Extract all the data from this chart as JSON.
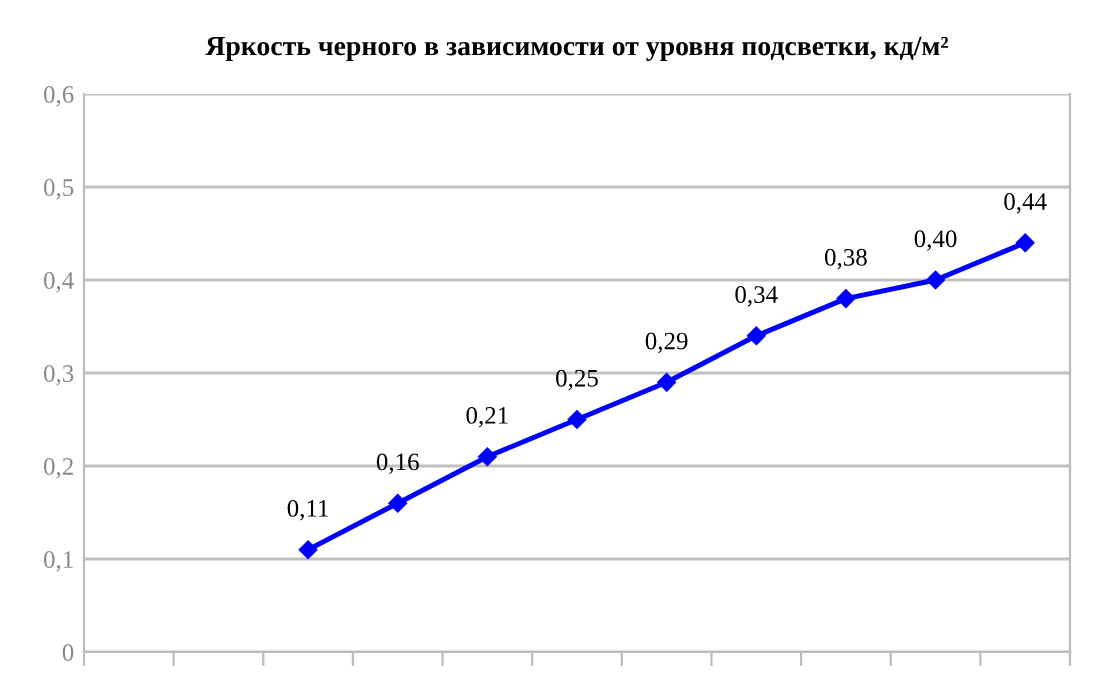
{
  "chart_data": {
    "type": "line",
    "title": "Яркость черного в зависимости от уровня подсветки, кд/м²",
    "categories": [
      null,
      null,
      null,
      null,
      null,
      null,
      null,
      null,
      null,
      null,
      null
    ],
    "series": [
      {
        "color": "#0000ff",
        "values": [
          null,
          null,
          0.11,
          0.16,
          0.21,
          0.25,
          0.29,
          0.34,
          0.38,
          0.4,
          0.44
        ],
        "value_labels": [
          null,
          null,
          "0,11",
          "0,16",
          "0,21",
          "0,25",
          "0,29",
          "0,34",
          "0,38",
          "0,40",
          "0,44"
        ]
      }
    ],
    "ylim": [
      0,
      0.6
    ],
    "yticks": [
      0,
      {
        "value": 0.1,
        "label": "0,1"
      },
      {
        "value": 0.2,
        "label": "0,2"
      },
      {
        "value": 0.3,
        "label": "0,3"
      },
      {
        "value": 0.4,
        "label": "0,4"
      },
      {
        "value": 0.5,
        "label": "0,5"
      },
      {
        "value": 0.6,
        "label": "0,6"
      }
    ],
    "grid": "y",
    "marker": "diamond",
    "line_style": "solid",
    "legend": false
  }
}
